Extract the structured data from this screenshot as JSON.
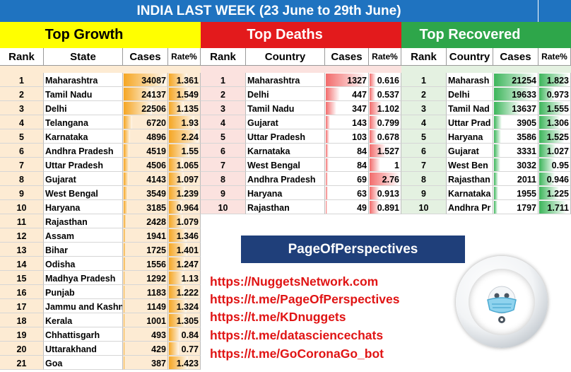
{
  "title": "INDIA LAST WEEK (23 June to 29th June)",
  "colors": {
    "title_bg": "#1f73c0",
    "growth": "#ffff00",
    "deaths": "#e31a1c",
    "recovered": "#2ea64a",
    "growth_bar": "#f5a623",
    "deaths_bar": "#f26b6b",
    "recovered_bar": "#3cb55a",
    "brand_bg": "#1f3f7a",
    "link": "#e01414"
  },
  "sections": {
    "growth": "Top Growth",
    "deaths": "Top Deaths",
    "recovered": "Top Recovered"
  },
  "headers": {
    "growth": [
      "Rank",
      "State",
      "Cases",
      "Rate%"
    ],
    "deaths": [
      "Rank",
      "Country",
      "Cases",
      "Rate%"
    ],
    "recovered": [
      "Rank",
      "Country",
      "Cases",
      "Rate%"
    ]
  },
  "chart_data": [
    {
      "type": "table",
      "title": "Top Growth",
      "columns": [
        "Rank",
        "State",
        "Cases",
        "Rate%"
      ],
      "rows": [
        [
          "1",
          "Maharashtra",
          "34087",
          "1.361"
        ],
        [
          "2",
          "Tamil Nadu",
          "24137",
          "1.549"
        ],
        [
          "3",
          "Delhi",
          "22506",
          "1.135"
        ],
        [
          "4",
          "Telangana",
          "6720",
          "1.93"
        ],
        [
          "5",
          "Karnataka",
          "4896",
          "2.24"
        ],
        [
          "6",
          "Andhra Pradesh",
          "4519",
          "1.55"
        ],
        [
          "7",
          "Uttar Pradesh",
          "4506",
          "1.065"
        ],
        [
          "8",
          "Gujarat",
          "4143",
          "1.097"
        ],
        [
          "9",
          "West Bengal",
          "3549",
          "1.239"
        ],
        [
          "10",
          "Haryana",
          "3185",
          "0.964"
        ],
        [
          "11",
          "Rajasthan",
          "2428",
          "1.079"
        ],
        [
          "12",
          "Assam",
          "1941",
          "1.346"
        ],
        [
          "13",
          "Bihar",
          "1725",
          "1.401"
        ],
        [
          "14",
          "Odisha",
          "1556",
          "1.247"
        ],
        [
          "15",
          "Madhya Pradesh",
          "1292",
          "1.13"
        ],
        [
          "16",
          "Punjab",
          "1183",
          "1.222"
        ],
        [
          "17",
          "Jammu and Kashn",
          "1149",
          "1.324"
        ],
        [
          "18",
          "Kerala",
          "1001",
          "1.305"
        ],
        [
          "19",
          "Chhattisgarh",
          "493",
          "0.84"
        ],
        [
          "20",
          "Uttarakhand",
          "429",
          "0.77"
        ],
        [
          "21",
          "Goa",
          "387",
          "1.423"
        ]
      ]
    },
    {
      "type": "table",
      "title": "Top Deaths",
      "columns": [
        "Rank",
        "Country",
        "Cases",
        "Rate%"
      ],
      "rows": [
        [
          "1",
          "Maharashtra",
          "1327",
          "0.616"
        ],
        [
          "2",
          "Delhi",
          "447",
          "0.537"
        ],
        [
          "3",
          "Tamil Nadu",
          "347",
          "1.102"
        ],
        [
          "4",
          "Gujarat",
          "143",
          "0.799"
        ],
        [
          "5",
          "Uttar Pradesh",
          "103",
          "0.678"
        ],
        [
          "6",
          "Karnataka",
          "84",
          "1.527"
        ],
        [
          "7",
          "West Bengal",
          "84",
          "1"
        ],
        [
          "8",
          "Andhra Pradesh",
          "69",
          "2.76"
        ],
        [
          "9",
          "Haryana",
          "63",
          "0.913"
        ],
        [
          "10",
          "Rajasthan",
          "49",
          "0.891"
        ]
      ]
    },
    {
      "type": "table",
      "title": "Top Recovered",
      "columns": [
        "Rank",
        "Country",
        "Cases",
        "Rate%"
      ],
      "rows": [
        [
          "1",
          "Maharash",
          "21254",
          "1.823"
        ],
        [
          "2",
          "Delhi",
          "19633",
          "0.973"
        ],
        [
          "3",
          "Tamil Nad",
          "13637",
          "1.555"
        ],
        [
          "4",
          "Uttar Prad",
          "3905",
          "1.306"
        ],
        [
          "5",
          "Haryana",
          "3586",
          "1.525"
        ],
        [
          "6",
          "Gujarat",
          "3331",
          "1.027"
        ],
        [
          "7",
          "West Ben",
          "3032",
          "0.95"
        ],
        [
          "8",
          "Rajasthan",
          "2011",
          "0.946"
        ],
        [
          "9",
          "Karnataka",
          "1955",
          "1.225"
        ],
        [
          "10",
          "Andhra Pr",
          "1797",
          "1.711"
        ]
      ]
    }
  ],
  "brand": "PageOfPerspectives",
  "links": [
    "https://NuggetsNetwork.com",
    "https://t.me/PageOfPerspectives",
    "https://t.me/KDnuggets",
    "https://t.me/datasciencechats",
    "https://t.me/GoCoronaGo_bot"
  ],
  "logo_icon": "robot-mask-icon"
}
